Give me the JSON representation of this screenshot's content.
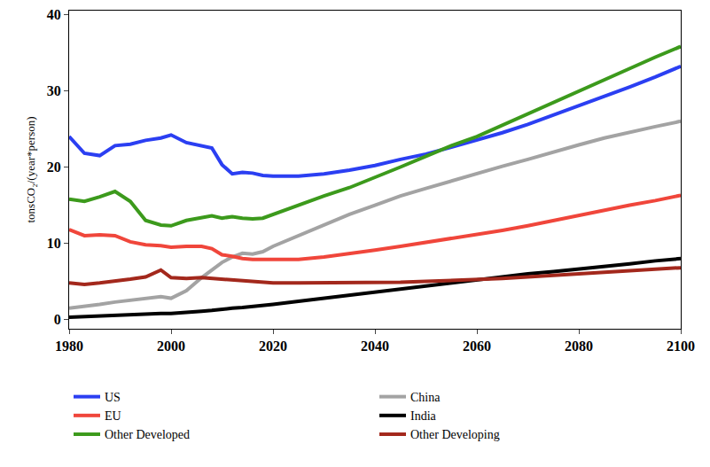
{
  "chart_data": {
    "type": "line",
    "y_label": "tonsCO₂/(year*person)",
    "x": [
      1980,
      1983,
      1986,
      1989,
      1992,
      1995,
      1998,
      2000,
      2003,
      2006,
      2008,
      2010,
      2012,
      2014,
      2016,
      2018,
      2020,
      2025,
      2030,
      2035,
      2040,
      2045,
      2050,
      2055,
      2060,
      2065,
      2070,
      2075,
      2080,
      2085,
      2090,
      2095,
      2100
    ],
    "series": [
      {
        "name": "US",
        "color": "#2b3ff2",
        "values": [
          24,
          21.8,
          21.5,
          22.8,
          23,
          23.5,
          23.8,
          24.2,
          23.2,
          22.8,
          22.5,
          20.3,
          19.1,
          19.3,
          19.2,
          18.9,
          18.8,
          18.8,
          19.1,
          19.6,
          20.2,
          21,
          21.7,
          22.6,
          23.5,
          24.5,
          25.6,
          26.8,
          28,
          29.2,
          30.5,
          31.8,
          33.2
        ]
      },
      {
        "name": "China",
        "color": "#a3a3a3",
        "values": [
          1.5,
          1.7,
          2,
          2.3,
          2.5,
          2.8,
          3,
          2.8,
          3.8,
          5.5,
          6.5,
          7.5,
          8.2,
          8.7,
          8.6,
          8.9,
          9.6,
          11,
          12.4,
          13.8,
          15,
          16.2,
          17.2,
          18.2,
          19.1,
          20.1,
          21,
          22,
          22.9,
          23.8,
          24.6,
          25.3,
          26
        ]
      },
      {
        "name": "EU",
        "color": "#f0463b",
        "values": [
          11.8,
          11,
          11.1,
          11,
          10.2,
          9.8,
          9.7,
          9.5,
          9.6,
          9.6,
          9.3,
          8.5,
          8.3,
          8,
          7.9,
          7.9,
          7.9,
          7.9,
          8.2,
          8.6,
          9.1,
          9.6,
          10.1,
          10.6,
          11.1,
          11.7,
          12.3,
          13,
          13.6,
          14.3,
          15,
          15.6,
          16.3
        ]
      },
      {
        "name": "India",
        "color": "#000000",
        "values": [
          0.3,
          0.4,
          0.5,
          0.5,
          0.6,
          0.7,
          0.8,
          0.8,
          0.9,
          1.1,
          1.2,
          1.4,
          1.5,
          1.6,
          1.7,
          1.8,
          2,
          2.4,
          2.8,
          3.2,
          3.7,
          4.1,
          4.5,
          4.9,
          5.2,
          5.6,
          6,
          6.3,
          6.6,
          7,
          7.3,
          7.7,
          8
        ]
      },
      {
        "name": "Other Developed",
        "color": "#3c9a1c",
        "values": [
          15.8,
          15.5,
          16.1,
          16.8,
          15.5,
          13,
          12.4,
          12.3,
          13,
          13.3,
          13.6,
          13.3,
          13.5,
          13.3,
          13.2,
          13.3,
          13.8,
          15,
          16.2,
          17.3,
          18.6,
          20,
          21.4,
          22.8,
          24,
          25.5,
          27,
          28.5,
          30,
          31.5,
          33,
          34.4,
          35.8
        ]
      },
      {
        "name": "Other Developing",
        "color": "#a3281c",
        "values": [
          4.8,
          4.6,
          4.8,
          5,
          5.3,
          5.6,
          6.5,
          5.5,
          5.4,
          5.5,
          5.4,
          5.3,
          5.2,
          5.1,
          5,
          4.9,
          4.8,
          4.8,
          4.8,
          4.8,
          4.8,
          4.9,
          5,
          5.1,
          5.2,
          5.4,
          5.6,
          5.8,
          6,
          6.2,
          6.4,
          6.6,
          6.8
        ]
      }
    ],
    "xlim": [
      1980,
      2100
    ],
    "xticks": [
      1980,
      2000,
      2020,
      2040,
      2060,
      2080,
      2100
    ],
    "ylim": [
      -1.2,
      40.5
    ],
    "yticks": [
      0,
      10,
      20,
      30,
      40
    ],
    "grid": false,
    "legend": "bottom"
  }
}
